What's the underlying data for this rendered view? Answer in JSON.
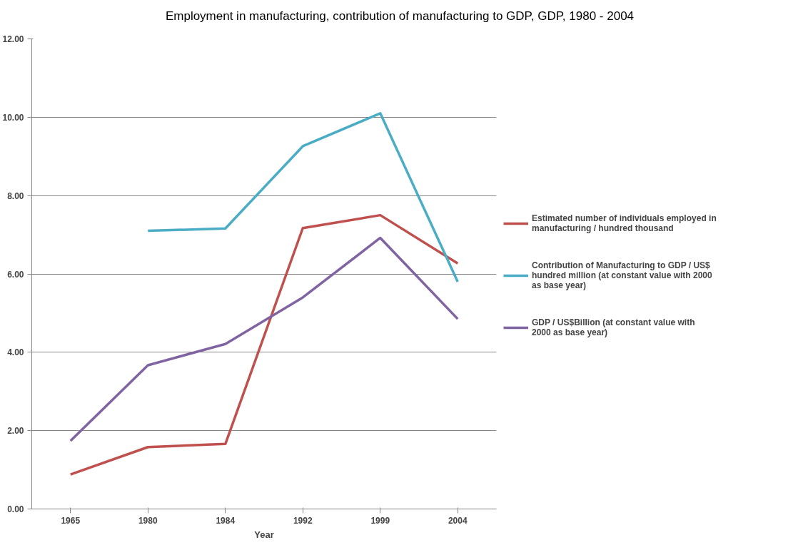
{
  "chart_data": {
    "type": "line",
    "title": "Employment in manufacturing, contribution of manufacturing to GDP, GDP, 1980 - 2004",
    "xlabel": "Year",
    "categories": [
      "1965",
      "1980",
      "1984",
      "1992",
      "1999",
      "2004"
    ],
    "series": [
      {
        "name": "Estimated number of individuals employed in manufacturing / hundred thousand",
        "color": "#c0504d",
        "values": [
          0.88,
          1.58,
          1.66,
          7.17,
          7.5,
          6.27
        ]
      },
      {
        "name": "Contribution of Manufacturing to GDP / US$ hundred million (at constant value with 2000 as base year)",
        "color": "#4bacc6",
        "values": [
          null,
          7.1,
          7.16,
          9.26,
          10.1,
          5.8
        ]
      },
      {
        "name": "GDP / US$Billion (at constant value with 2000 as base year)",
        "color": "#8064a2",
        "values": [
          1.74,
          3.67,
          4.21,
          5.4,
          6.92,
          4.85
        ]
      }
    ],
    "ylim": [
      0,
      12
    ],
    "yticks": [
      {
        "value": 0,
        "label": "0.00"
      },
      {
        "value": 2,
        "label": "2.00"
      },
      {
        "value": 4,
        "label": "4.00"
      },
      {
        "value": 6,
        "label": "6.00"
      },
      {
        "value": 8,
        "label": "8.00"
      },
      {
        "value": 10,
        "label": "10.00"
      },
      {
        "value": 12,
        "label": "12.00"
      }
    ],
    "grid": "y",
    "legend": "right",
    "marker": "none",
    "line_style": "solid"
  }
}
